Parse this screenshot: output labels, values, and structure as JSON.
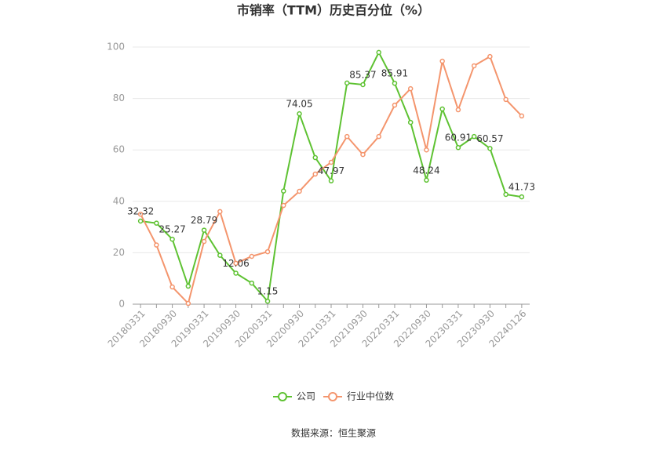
{
  "chart_data": {
    "type": "line",
    "title": "市销率（TTM）历史百分位（%）",
    "source": "数据来源：恒生聚源",
    "categories": [
      "20180331",
      null,
      "20180930",
      null,
      "20190331",
      null,
      "20190930",
      null,
      "20200331",
      null,
      "20200930",
      null,
      "20210331",
      null,
      "20210930",
      null,
      "20220331",
      null,
      "20220930",
      null,
      "20230331",
      null,
      "20230930",
      null,
      "20240126"
    ],
    "series": [
      {
        "name": "公司",
        "color": "#5ec232",
        "values": [
          32.32,
          31.5,
          25.27,
          7,
          28.79,
          19,
          12.06,
          8.2,
          1.15,
          44,
          74.05,
          57,
          47.97,
          86,
          85.37,
          97.9,
          85.91,
          70.7,
          48.24,
          75.9,
          60.91,
          65.2,
          60.57,
          42.7,
          41.73
        ],
        "value_labels": [
          "32.32",
          null,
          "25.27",
          null,
          "28.79",
          null,
          "12.06",
          null,
          "1.15",
          null,
          "74.05",
          null,
          "47.97",
          null,
          "85.37",
          null,
          "85.91",
          null,
          "48.24",
          null,
          "60.91",
          null,
          "60.57",
          null,
          "41.73"
        ]
      },
      {
        "name": "行业中位数",
        "color": "#f4956d",
        "values": [
          35,
          23,
          6.7,
          0.3,
          24.4,
          36,
          15.9,
          18.6,
          20.4,
          38.4,
          43.9,
          50.6,
          55.2,
          65.2,
          58.2,
          65.2,
          77.4,
          83.8,
          60,
          94.5,
          75.6,
          92.7,
          96.3,
          79.6,
          73.2
        ]
      }
    ],
    "ylim": [
      0,
      100
    ],
    "yticks": [
      0,
      20,
      40,
      60,
      80,
      100
    ],
    "grid": true
  }
}
